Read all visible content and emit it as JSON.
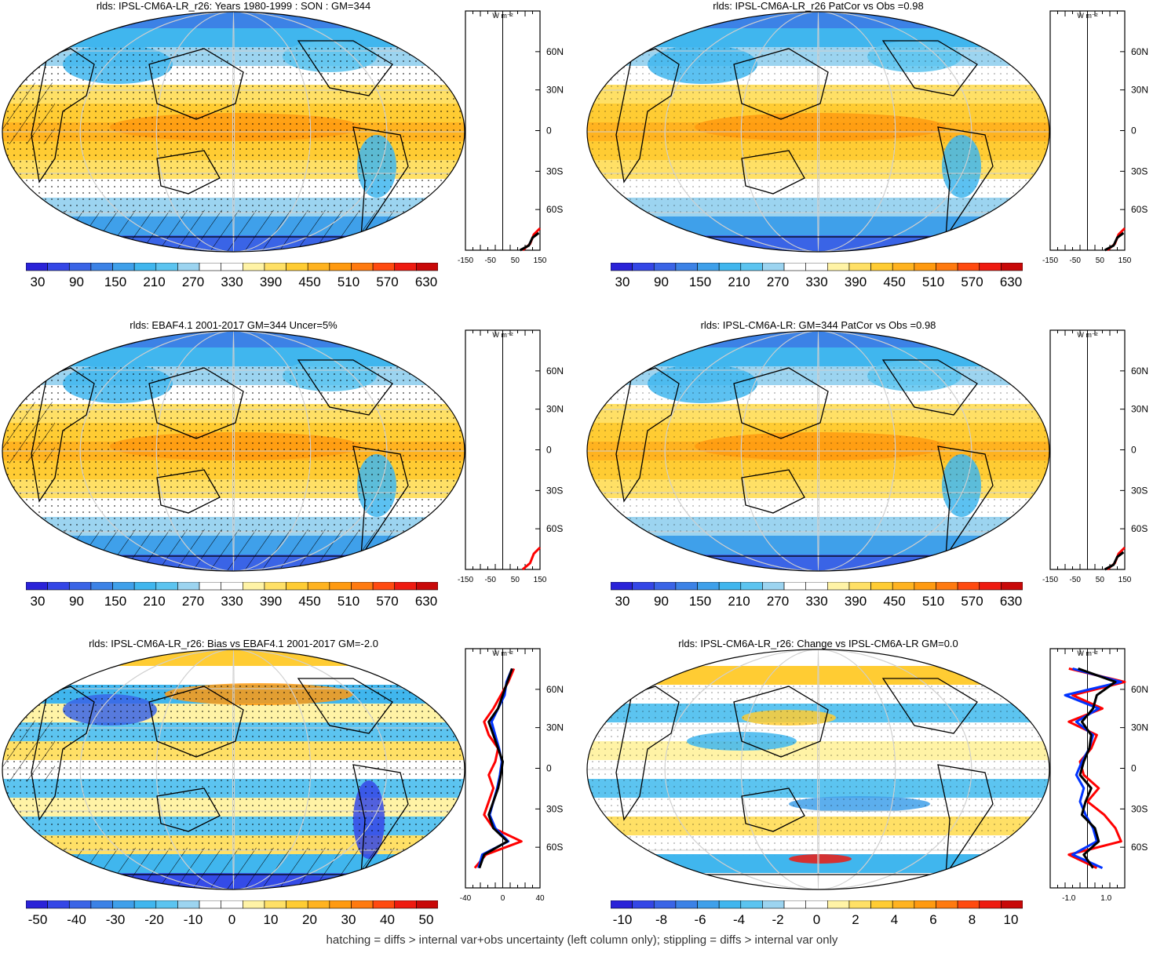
{
  "colors": {
    "contour_scale": [
      "#2a22d8",
      "#3446e6",
      "#3a64e6",
      "#3c82e6",
      "#3fa0ea",
      "#40b6ee",
      "#5cc4f0",
      "#9cd4f0",
      "#ffffff",
      "#ffffff",
      "#fff3a6",
      "#ffe066",
      "#ffcc33",
      "#ffb320",
      "#ff9a10",
      "#ff7a10",
      "#ff4a10",
      "#ee1a10",
      "#c80808"
    ],
    "hatch": "#000000",
    "stipple": "#000000",
    "graticule": "#cfcfcf",
    "profile_model": "#000000",
    "profile_obs": "#ff0000",
    "profile_alt": "#0033ff"
  },
  "footer": "hatching = diffs > internal var+obs uncertainty (left column only); stippling = diffs > internal var only",
  "panels": [
    {
      "id": "model-climatology",
      "title": "rlds: IPSL-CM6A-LR_r26: Years 1980-1999 : SON : GM=344",
      "map_style": "climatology",
      "hatched": true,
      "colorbar": [
        "30",
        "90",
        "150",
        "210",
        "270",
        "330",
        "390",
        "450",
        "510",
        "570",
        "630"
      ],
      "profile": {
        "units": "W m⁻²",
        "xticks": [
          "-150",
          "-50",
          "50",
          "150"
        ],
        "xlim": [
          -150,
          150
        ],
        "lat_labels": [
          "60N",
          "30N",
          "0",
          "30S",
          "60S"
        ],
        "lines": [
          "obs",
          "model"
        ]
      }
    },
    {
      "id": "model-vs-obs-1",
      "title": "rlds: IPSL-CM6A-LR_r26 PatCor vs Obs =0.98",
      "map_style": "climatology",
      "hatched": false,
      "colorbar": [
        "30",
        "90",
        "150",
        "210",
        "270",
        "330",
        "390",
        "450",
        "510",
        "570",
        "630"
      ],
      "profile": {
        "units": "W m⁻²",
        "xticks": [
          "-150",
          "-50",
          "50",
          "150"
        ],
        "xlim": [
          -150,
          150
        ],
        "lat_labels": [
          "60N",
          "30N",
          "0",
          "30S",
          "60S"
        ],
        "lines": [
          "obs",
          "model"
        ]
      }
    },
    {
      "id": "obs-climatology",
      "title": "rlds: EBAF4.1 2001-2017 GM=344 Uncer=5%",
      "map_style": "climatology",
      "hatched": true,
      "colorbar": [
        "30",
        "90",
        "150",
        "210",
        "270",
        "330",
        "390",
        "450",
        "510",
        "570",
        "630"
      ],
      "profile": {
        "units": "W m⁻²",
        "xticks": [
          "-150",
          "-50",
          "50",
          "150"
        ],
        "xlim": [
          -150,
          150
        ],
        "lat_labels": [
          "60N",
          "30N",
          "0",
          "30S",
          "60S"
        ],
        "lines": [
          "obs"
        ]
      }
    },
    {
      "id": "ensemble-vs-obs",
      "title": "rlds: IPSL-CM6A-LR: GM=344 PatCor vs Obs =0.98",
      "map_style": "climatology",
      "hatched": false,
      "colorbar": [
        "30",
        "90",
        "150",
        "210",
        "270",
        "330",
        "390",
        "450",
        "510",
        "570",
        "630"
      ],
      "profile": {
        "units": "W m⁻²",
        "xticks": [
          "-150",
          "-50",
          "50",
          "150"
        ],
        "xlim": [
          -150,
          150
        ],
        "lat_labels": [
          "60N",
          "30N",
          "0",
          "30S",
          "60S"
        ],
        "lines": [
          "obs",
          "model"
        ]
      }
    },
    {
      "id": "bias",
      "title": "rlds: IPSL-CM6A-LR_r26: Bias vs EBAF4.1 2001-2017  GM=-2.0",
      "map_style": "bias",
      "hatched": true,
      "colorbar": [
        "-50",
        "-40",
        "-30",
        "-20",
        "-10",
        "0",
        "10",
        "20",
        "30",
        "40",
        "50"
      ],
      "profile": {
        "units": "W m⁻²",
        "xticks": [
          "-40",
          "0",
          "40"
        ],
        "xlim": [
          -40,
          40
        ],
        "lat_labels": [
          "60N",
          "30N",
          "0",
          "30S",
          "60S"
        ],
        "lines": [
          "obs",
          "alt",
          "model"
        ]
      }
    },
    {
      "id": "change",
      "title": "rlds: IPSL-CM6A-LR_r26: Change vs IPSL-CM6A-LR GM=0.0",
      "map_style": "change",
      "hatched": false,
      "colorbar": [
        "-10",
        "-8",
        "-6",
        "-4",
        "-2",
        "0",
        "2",
        "4",
        "6",
        "8",
        "10"
      ],
      "profile": {
        "units": "W m⁻²",
        "xticks": [
          "-1.0",
          "1.0"
        ],
        "xlim": [
          -2,
          2
        ],
        "lat_labels": [
          "60N",
          "30N",
          "0",
          "30S",
          "60S"
        ],
        "lines": [
          "obs",
          "alt",
          "model"
        ]
      }
    }
  ],
  "chart_data": [
    {
      "type": "heatmap",
      "title": "rlds: IPSL-CM6A-LR_r26: Years 1980-1999 : SON : GM=344",
      "units": "W m-2",
      "colorbar_levels": [
        30,
        90,
        150,
        210,
        270,
        330,
        390,
        450,
        510,
        570,
        630
      ],
      "zonal_bands": [
        {
          "lat": 75,
          "value": 230
        },
        {
          "lat": 60,
          "value": 270
        },
        {
          "lat": 45,
          "value": 300
        },
        {
          "lat": 30,
          "value": 360
        },
        {
          "lat": 15,
          "value": 400
        },
        {
          "lat": 0,
          "value": 410
        },
        {
          "lat": -15,
          "value": 390
        },
        {
          "lat": -30,
          "value": 340
        },
        {
          "lat": -45,
          "value": 310
        },
        {
          "lat": -60,
          "value": 260
        },
        {
          "lat": -75,
          "value": 150
        }
      ]
    },
    {
      "type": "heatmap",
      "title": "rlds: IPSL-CM6A-LR_r26 PatCor vs Obs =0.98",
      "units": "W m-2",
      "colorbar_levels": [
        30,
        90,
        150,
        210,
        270,
        330,
        390,
        450,
        510,
        570,
        630
      ]
    },
    {
      "type": "heatmap",
      "title": "rlds: EBAF4.1 2001-2017 GM=344 Uncer=5%",
      "units": "W m-2",
      "colorbar_levels": [
        30,
        90,
        150,
        210,
        270,
        330,
        390,
        450,
        510,
        570,
        630
      ]
    },
    {
      "type": "heatmap",
      "title": "rlds: IPSL-CM6A-LR: GM=344 PatCor vs Obs =0.98",
      "units": "W m-2",
      "colorbar_levels": [
        30,
        90,
        150,
        210,
        270,
        330,
        390,
        450,
        510,
        570,
        630
      ]
    },
    {
      "type": "heatmap",
      "title": "rlds: IPSL-CM6A-LR_r26: Bias vs EBAF4.1 2001-2017  GM=-2.0",
      "units": "W m-2",
      "colorbar_levels": [
        -50,
        -40,
        -30,
        -20,
        -10,
        0,
        10,
        20,
        30,
        40,
        50
      ],
      "zonal_profile": {
        "lat": [
          75,
          65,
          55,
          45,
          35,
          25,
          15,
          5,
          -5,
          -15,
          -25,
          -35,
          -45,
          -55,
          -65,
          -75
        ],
        "model": [
          10,
          5,
          0,
          -5,
          -15,
          -10,
          -5,
          0,
          -2,
          -5,
          -10,
          -15,
          -10,
          5,
          -20,
          -25
        ],
        "obs": [
          12,
          6,
          -2,
          -10,
          -20,
          -15,
          -5,
          -8,
          -15,
          -10,
          -15,
          -20,
          -10,
          20,
          -18,
          -30
        ],
        "alt": [
          10,
          4,
          2,
          -5,
          -12,
          -8,
          -4,
          -1,
          -3,
          -6,
          -10,
          -14,
          -8,
          6,
          -22,
          -26
        ]
      }
    },
    {
      "type": "heatmap",
      "title": "rlds: IPSL-CM6A-LR_r26: Change vs IPSL-CM6A-LR GM=0.0",
      "units": "W m-2",
      "colorbar_levels": [
        -10,
        -8,
        -6,
        -4,
        -2,
        0,
        2,
        4,
        6,
        8,
        10
      ],
      "zonal_profile": {
        "lat": [
          75,
          65,
          55,
          45,
          35,
          25,
          15,
          5,
          -5,
          -15,
          -25,
          -35,
          -45,
          -55,
          -65,
          -75
        ],
        "model": [
          -0.5,
          1.5,
          0.5,
          0.3,
          -0.3,
          0.2,
          0.1,
          -0.2,
          -0.4,
          0.2,
          -0.1,
          -0.3,
          0.4,
          0.6,
          -0.2,
          0.3
        ],
        "obs": [
          -1.0,
          2.0,
          -0.8,
          0.8,
          -1.0,
          0.5,
          0.2,
          -0.4,
          -0.2,
          0.6,
          0.0,
          0.9,
          1.5,
          1.8,
          -1.0,
          0.5
        ],
        "alt": [
          -0.8,
          1.8,
          -1.2,
          0.6,
          -0.6,
          0.3,
          0.1,
          -0.3,
          -0.6,
          -0.2,
          -0.4,
          -0.1,
          0.3,
          0.5,
          -0.8,
          0.8
        ]
      }
    }
  ]
}
